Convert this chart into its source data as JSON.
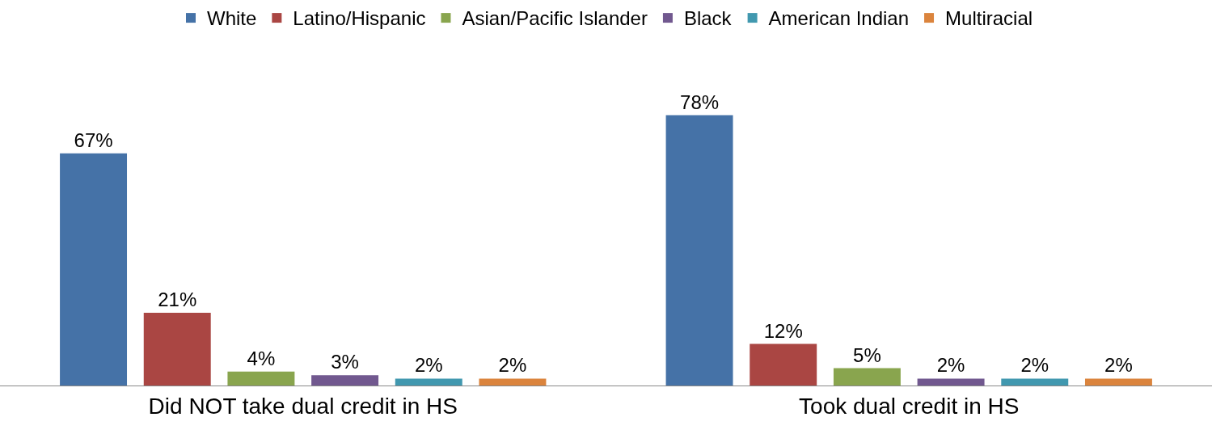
{
  "chart_data": {
    "type": "bar",
    "categories": [
      "Did NOT take dual credit in HS",
      "Took dual credit in HS"
    ],
    "series": [
      {
        "name": "White",
        "color": "#4572a7",
        "values": [
          67,
          78
        ],
        "value_labels": [
          "67%",
          "78%"
        ]
      },
      {
        "name": "Latino/Hispanic",
        "color": "#aa4643",
        "values": [
          21,
          12
        ],
        "value_labels": [
          "21%",
          "12%"
        ]
      },
      {
        "name": "Asian/Pacific Islander",
        "color": "#89a54e",
        "values": [
          4,
          5
        ],
        "value_labels": [
          "4%",
          "5%"
        ]
      },
      {
        "name": "Black",
        "color": "#71588f",
        "values": [
          3,
          2
        ],
        "value_labels": [
          "3%",
          "2%"
        ]
      },
      {
        "name": "American Indian",
        "color": "#4198af",
        "values": [
          2,
          2
        ],
        "value_labels": [
          "2%",
          "2%"
        ]
      },
      {
        "name": "Multiracial",
        "color": "#db843d",
        "values": [
          2,
          2
        ],
        "value_labels": [
          "2%",
          "2%"
        ]
      }
    ],
    "legend": "top"
  }
}
